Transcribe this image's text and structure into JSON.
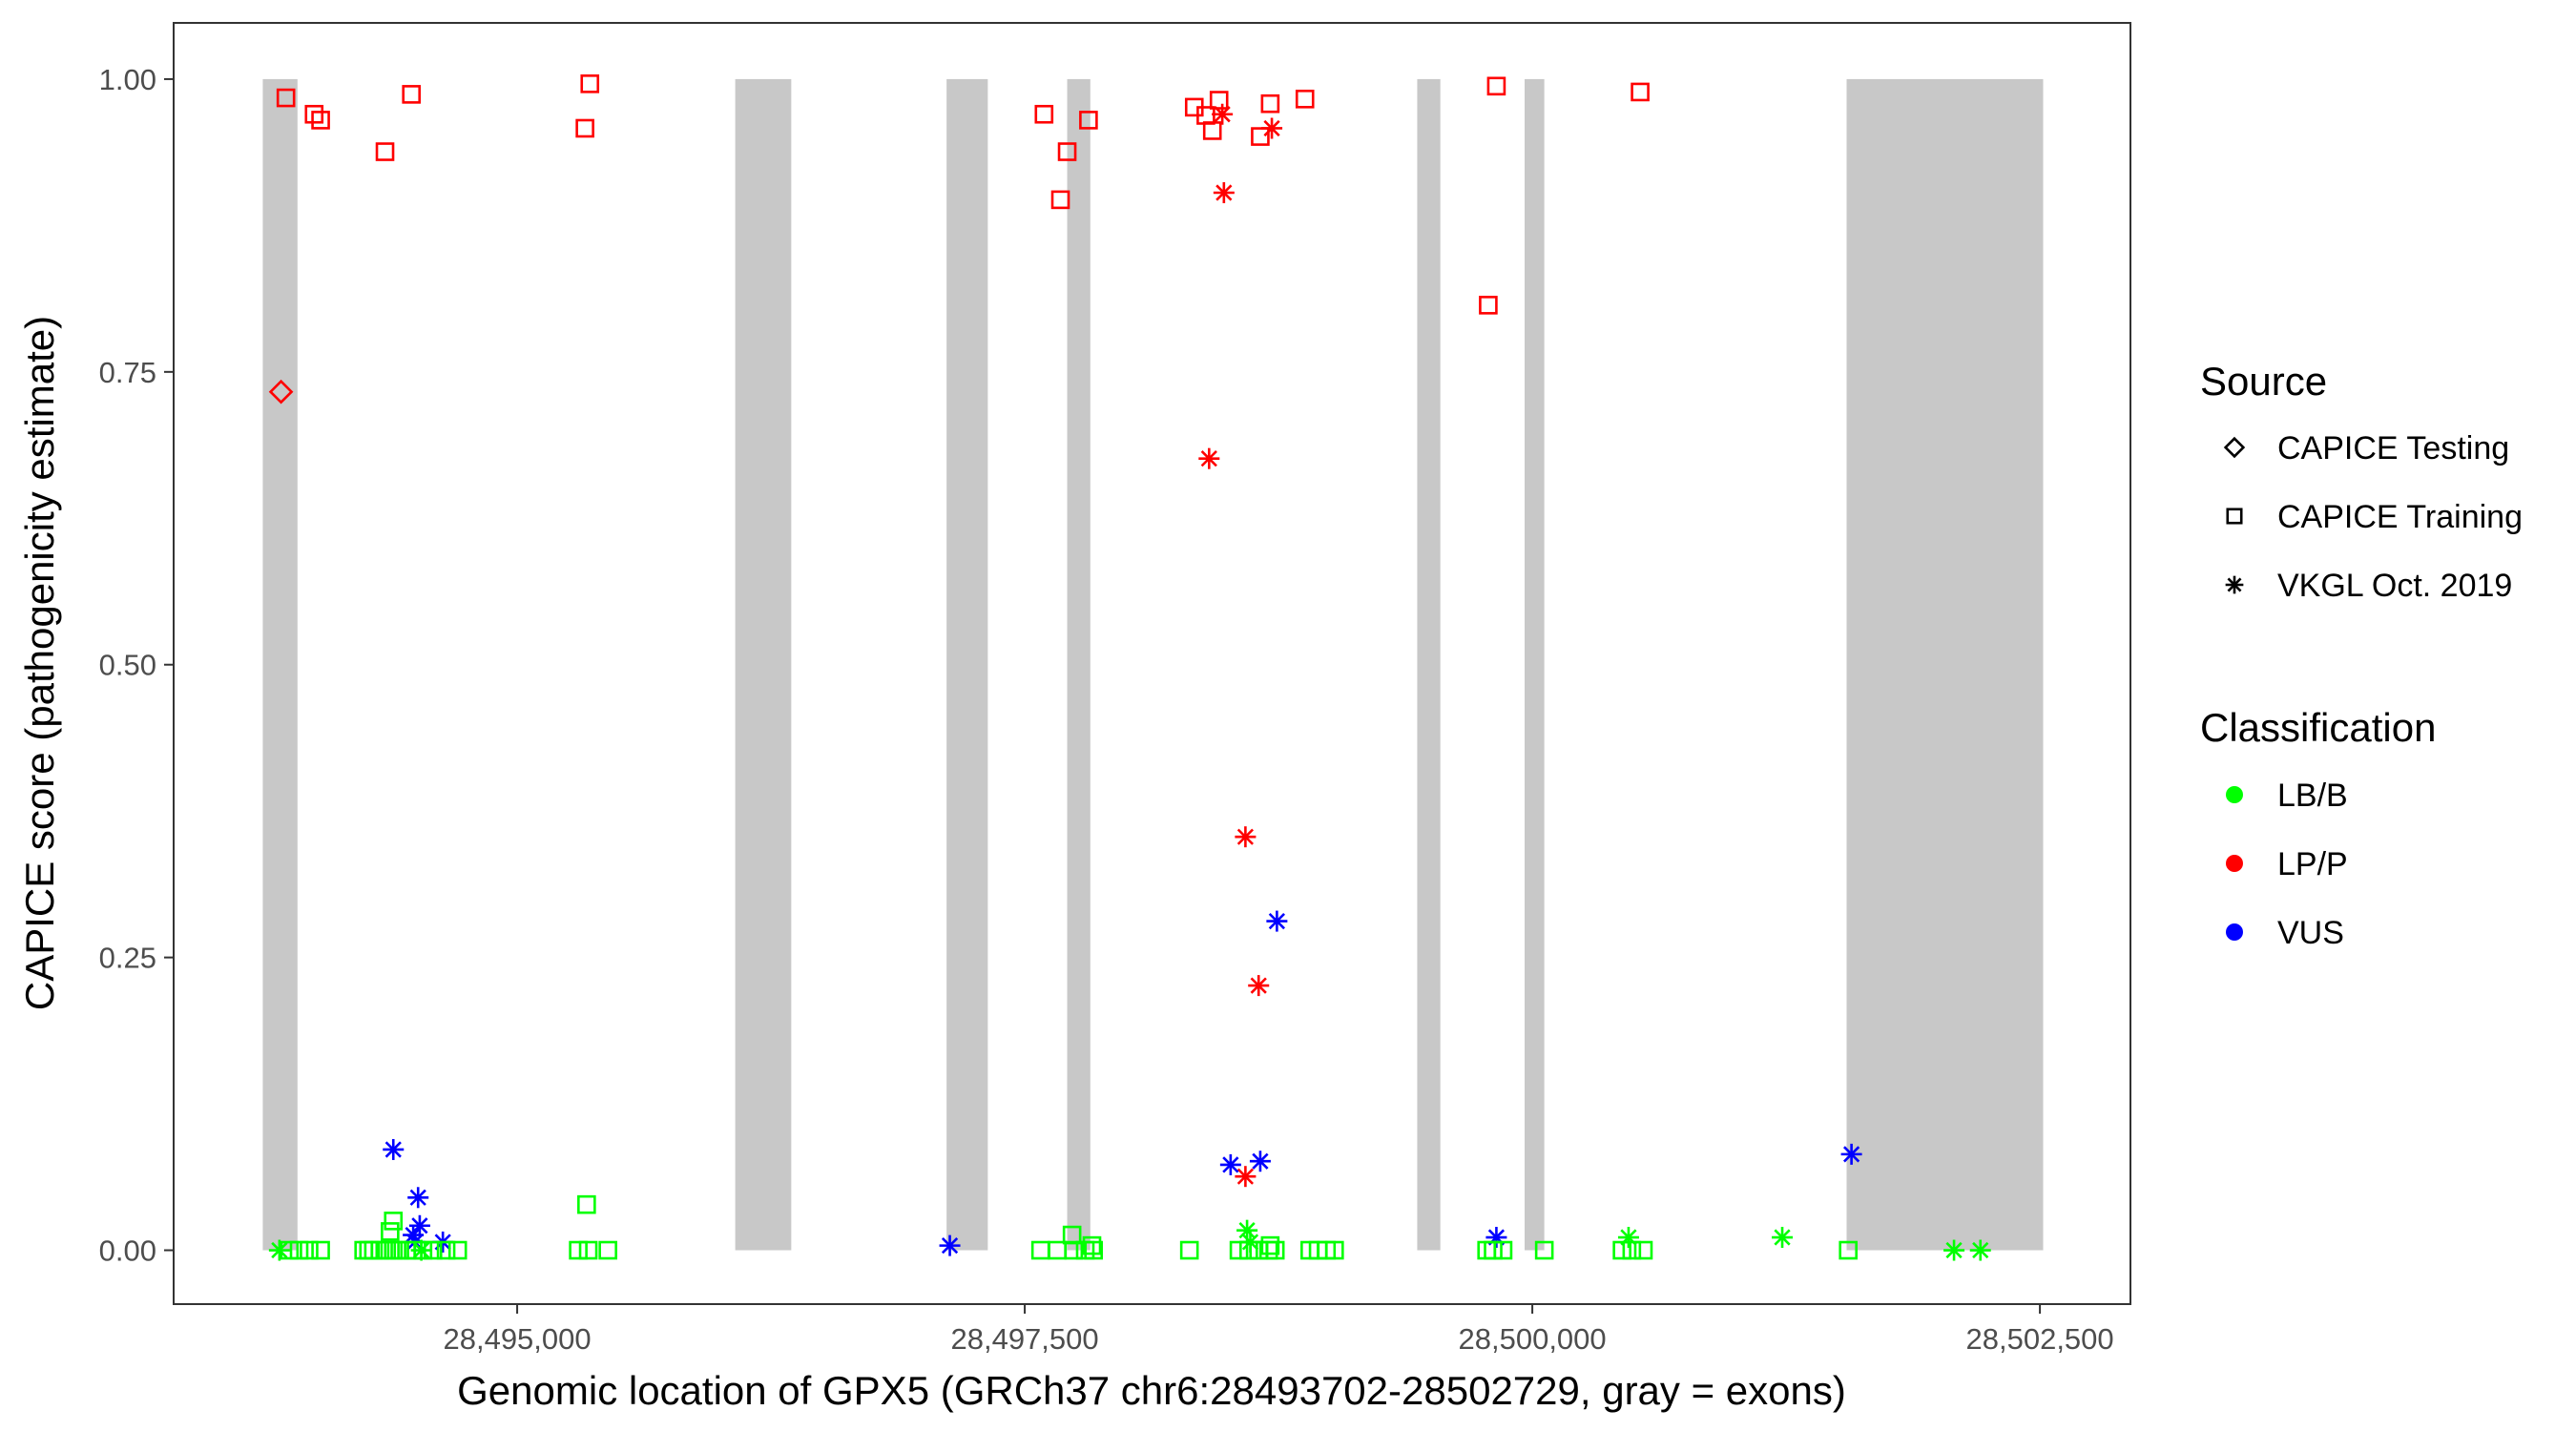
{
  "chart_data": {
    "type": "scatter",
    "xlabel": "Genomic location of GPX5 (GRCh37 chr6:28493702-28502729, gray = exons)",
    "ylabel": "CAPICE score (pathogenicity estimate)",
    "xlim": [
      28493308,
      28502946
    ],
    "ylim": [
      -0.046,
      1.048
    ],
    "x_ticks": [
      28495000,
      28497500,
      28500000,
      28502500
    ],
    "x_tick_labels": [
      "28,495,000",
      "28,497,500",
      "28,500,000",
      "28,502,500"
    ],
    "y_ticks": [
      0,
      0.25,
      0.5,
      0.75,
      1.0
    ],
    "y_tick_labels": [
      "0.00",
      "0.25",
      "0.50",
      "0.75",
      "1.00"
    ],
    "grid": false,
    "legend_placement": "right",
    "exon_color": "#C8C8C8",
    "exons": [
      [
        28493747,
        28493918
      ],
      [
        28496074,
        28496350
      ],
      [
        28497115,
        28497318
      ],
      [
        28497709,
        28497823
      ],
      [
        28499433,
        28499547
      ],
      [
        28499962,
        28500059
      ],
      [
        28501548,
        28502516
      ]
    ],
    "legend": {
      "source_title": "Source",
      "source_items": [
        {
          "label": "CAPICE Testing",
          "shape": "diamond"
        },
        {
          "label": "CAPICE Training",
          "shape": "square"
        },
        {
          "label": "VKGL Oct. 2019",
          "shape": "asterisk"
        }
      ],
      "class_title": "Classification",
      "class_items": [
        {
          "label": "LB/B",
          "color": "#00FF00"
        },
        {
          "label": "LP/P",
          "color": "#FF0000"
        },
        {
          "label": "VUS",
          "color": "#0000FF"
        }
      ]
    },
    "series": [
      {
        "source": "CAPICE Testing",
        "classification": "LP/P",
        "shape": "diamond",
        "color": "#FF0000",
        "points": [
          [
            28493837,
            0.733
          ]
        ]
      },
      {
        "source": "CAPICE Training",
        "classification": "LP/P",
        "shape": "square",
        "color": "#FF0000",
        "points": [
          [
            28493861,
            0.984
          ],
          [
            28494000,
            0.97
          ],
          [
            28494032,
            0.965
          ],
          [
            28494349,
            0.938
          ],
          [
            28494479,
            0.987
          ],
          [
            28495334,
            0.958
          ],
          [
            28495358,
            0.996
          ],
          [
            28497595,
            0.97
          ],
          [
            28497814,
            0.965
          ],
          [
            28497709,
            0.938
          ],
          [
            28497676,
            0.897
          ],
          [
            28498335,
            0.976
          ],
          [
            28498392,
            0.969
          ],
          [
            28498457,
            0.982
          ],
          [
            28498424,
            0.956
          ],
          [
            28498660,
            0.951
          ],
          [
            28498709,
            0.979
          ],
          [
            28498880,
            0.983
          ],
          [
            28499783,
            0.807
          ],
          [
            28499823,
            0.994
          ],
          [
            28500531,
            0.989
          ]
        ]
      },
      {
        "source": "VKGL Oct. 2019",
        "classification": "LP/P",
        "shape": "asterisk",
        "color": "#FF0000",
        "points": [
          [
            28498473,
            0.97
          ],
          [
            28498717,
            0.958
          ],
          [
            28498481,
            0.903
          ],
          [
            28498408,
            0.676
          ],
          [
            28498587,
            0.353
          ],
          [
            28498652,
            0.226
          ],
          [
            28498587,
            0.063
          ]
        ]
      },
      {
        "source": "VKGL Oct. 2019",
        "classification": "VUS",
        "shape": "asterisk",
        "color": "#0000FF",
        "points": [
          [
            28494390,
            0.086
          ],
          [
            28494512,
            0.045
          ],
          [
            28494520,
            0.021
          ],
          [
            28494488,
            0.013
          ],
          [
            28494496,
            0.007
          ],
          [
            28494634,
            0.007
          ],
          [
            28497131,
            0.004
          ],
          [
            28498514,
            0.073
          ],
          [
            28498660,
            0.076
          ],
          [
            28498742,
            0.281
          ],
          [
            28499823,
            0.011
          ],
          [
            28501572,
            0.082
          ]
        ]
      },
      {
        "source": "VKGL Oct. 2019",
        "classification": "LB/B",
        "shape": "asterisk",
        "color": "#00FF00",
        "points": [
          [
            28493829,
            0.0
          ],
          [
            28494528,
            0.0
          ],
          [
            28498595,
            0.017
          ],
          [
            28498611,
            0.007
          ],
          [
            28500474,
            0.011
          ],
          [
            28501231,
            0.011
          ],
          [
            28502077,
            0.0
          ],
          [
            28502207,
            0.0
          ]
        ]
      },
      {
        "source": "CAPICE Training",
        "classification": "LB/B",
        "shape": "square",
        "color": "#00FF00",
        "points": [
          [
            28493878,
            0
          ],
          [
            28493926,
            0
          ],
          [
            28493975,
            0
          ],
          [
            28494032,
            0
          ],
          [
            28494244,
            0
          ],
          [
            28494268,
            0
          ],
          [
            28494292,
            0
          ],
          [
            28494325,
            0
          ],
          [
            28494357,
            0
          ],
          [
            28494390,
            0
          ],
          [
            28494422,
            0
          ],
          [
            28494455,
            0
          ],
          [
            28494488,
            0
          ],
          [
            28494536,
            0
          ],
          [
            28494585,
            0
          ],
          [
            28494650,
            0
          ],
          [
            28494707,
            0
          ],
          [
            28495301,
            0
          ],
          [
            28495350,
            0
          ],
          [
            28495447,
            0
          ],
          [
            28497578,
            0
          ],
          [
            28497660,
            0
          ],
          [
            28497741,
            0
          ],
          [
            28497798,
            0
          ],
          [
            28497839,
            0
          ],
          [
            28498311,
            0
          ],
          [
            28498555,
            0
          ],
          [
            28498603,
            0
          ],
          [
            28498652,
            0
          ],
          [
            28498701,
            0
          ],
          [
            28498734,
            0
          ],
          [
            28498904,
            0
          ],
          [
            28498945,
            0
          ],
          [
            28498986,
            0
          ],
          [
            28499026,
            0
          ],
          [
            28499775,
            0
          ],
          [
            28499807,
            0
          ],
          [
            28499856,
            0
          ],
          [
            28500059,
            0
          ],
          [
            28500442,
            0
          ],
          [
            28500490,
            0
          ],
          [
            28500547,
            0
          ],
          [
            28501556,
            0
          ],
          [
            28494390,
            0.025
          ],
          [
            28494374,
            0.016
          ],
          [
            28495342,
            0.039
          ],
          [
            28497733,
            0.013
          ],
          [
            28497831,
            0.004
          ],
          [
            28498709,
            0.004
          ]
        ]
      }
    ]
  }
}
